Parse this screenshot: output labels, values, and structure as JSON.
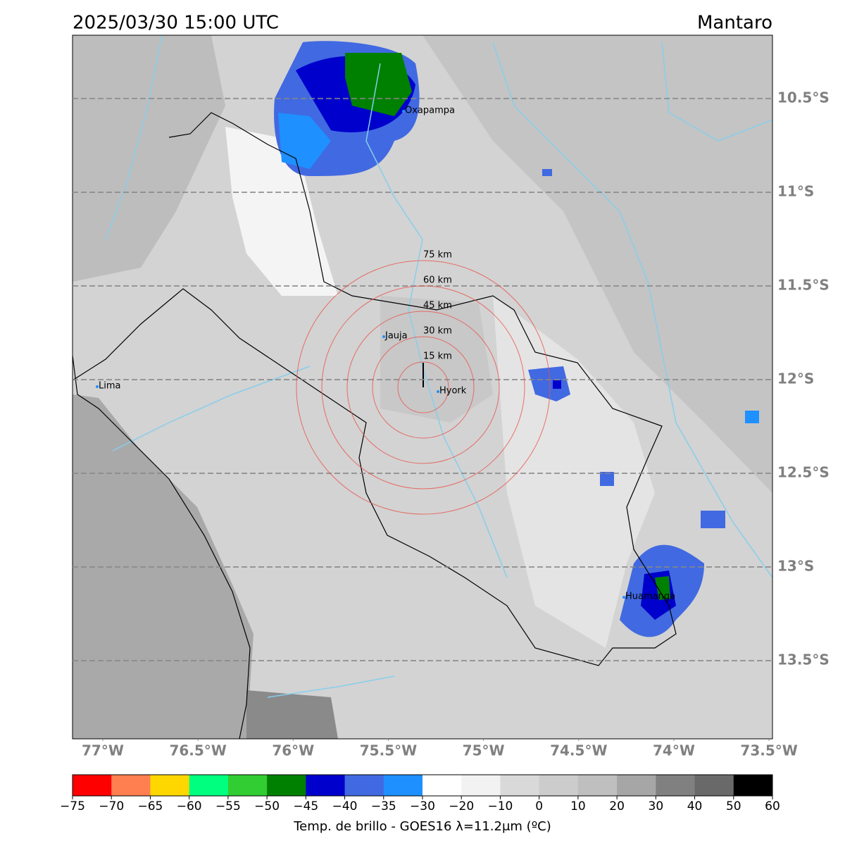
{
  "header": {
    "title": "2025/03/30 15:00 UTC",
    "region": "Mantaro"
  },
  "map": {
    "lat_labels": [
      {
        "value": -10.5,
        "label": "10.5°S"
      },
      {
        "value": -11,
        "label": "11°S"
      },
      {
        "value": -11.5,
        "label": "11.5°S"
      },
      {
        "value": -12,
        "label": "12°S"
      },
      {
        "value": -12.5,
        "label": "12.5°S"
      },
      {
        "value": -13,
        "label": "13°S"
      },
      {
        "value": -13.5,
        "label": "13.5°S"
      }
    ],
    "lon_labels": [
      {
        "value": -77,
        "label": "77°W"
      },
      {
        "value": -76.5,
        "label": "76.5°W"
      },
      {
        "value": -76,
        "label": "76°W"
      },
      {
        "value": -75.5,
        "label": "75.5°W"
      },
      {
        "value": -75,
        "label": "75°W"
      },
      {
        "value": -74.5,
        "label": "74.5°W"
      },
      {
        "value": -74,
        "label": "74°W"
      },
      {
        "value": -73.5,
        "label": "73.5°W"
      }
    ],
    "cities": [
      "Oxapampa",
      "Jauja",
      "Hyork",
      "Lima",
      "Huamanga"
    ],
    "rings": [
      {
        "value": 15,
        "label": "15 km"
      },
      {
        "value": 30,
        "label": "30 km"
      },
      {
        "value": 45,
        "label": "45 km"
      },
      {
        "value": 60,
        "label": "60 km"
      },
      {
        "value": 75,
        "label": "75 km"
      }
    ]
  },
  "colorbar": {
    "label": "Temp. de brillo - GOES16 λ=11.2μm (ºC)",
    "ticks": [
      {
        "value": -75,
        "label": "−75"
      },
      {
        "value": -70,
        "label": "−70"
      },
      {
        "value": -65,
        "label": "−65"
      },
      {
        "value": -60,
        "label": "−60"
      },
      {
        "value": -55,
        "label": "−55"
      },
      {
        "value": -50,
        "label": "−50"
      },
      {
        "value": -45,
        "label": "−45"
      },
      {
        "value": -40,
        "label": "−40"
      },
      {
        "value": -35,
        "label": "−35"
      },
      {
        "value": -30,
        "label": "−30"
      },
      {
        "value": -20,
        "label": "−20"
      },
      {
        "value": -10,
        "label": "−10"
      },
      0,
      10,
      20,
      30,
      40,
      50,
      60
    ],
    "colors": [
      "#ff0000",
      "#ff7f50",
      "#ffd700",
      "#00ff7f",
      "#32cd32",
      "#008000",
      "#0000cd",
      "#4169e1",
      "#1e90ff",
      "#ffffff",
      "#f2f2f2",
      "#d9d9d9",
      "#cccccc",
      "#bfbfbf",
      "#a6a6a6",
      "#808080",
      "#696969",
      "#000000"
    ]
  }
}
